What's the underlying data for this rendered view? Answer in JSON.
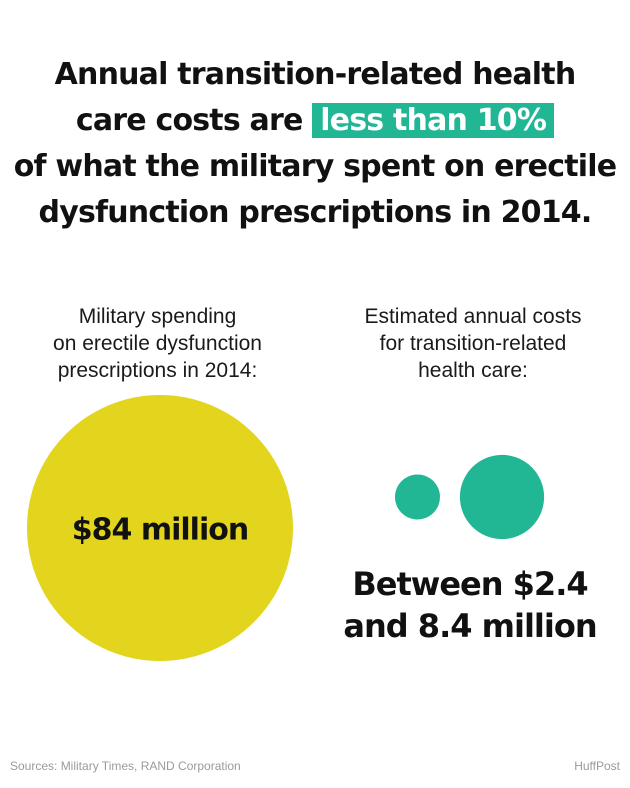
{
  "headline": {
    "line1": "Annual transition-related health",
    "line2_prefix": "care costs are",
    "highlight": "less than 10%",
    "line3": "of what the military spent on erectile",
    "line4": "dysfunction prescriptions in 2014.",
    "highlight_color": "#22b794"
  },
  "left_panel": {
    "label_lines": [
      "Military spending",
      "on erectile dysfunction",
      "prescriptions in 2014:"
    ],
    "value_label": "$84 million"
  },
  "right_panel": {
    "label_lines": [
      "Estimated annual costs",
      "for transition-related",
      "health care:"
    ],
    "value_lines": [
      "Between $2.4",
      "and 8.4 million"
    ]
  },
  "footer": {
    "sources": "Sources: Military Times, RAND Corporation",
    "brand": "HuffPost"
  },
  "chart_data": {
    "type": "bubble",
    "unit": "million USD",
    "bubbles": [
      {
        "category": "Military spending on erectile dysfunction prescriptions in 2014",
        "value": 84,
        "color": "#e3d51e"
      },
      {
        "category": "Estimated annual costs for transition-related health care (low)",
        "value": 2.4,
        "color": "#22b794"
      },
      {
        "category": "Estimated annual costs for transition-related health care (high)",
        "value": 8.4,
        "color": "#22b794"
      }
    ],
    "colors": {
      "yellow": "#e3d51e",
      "teal": "#22b794"
    }
  }
}
